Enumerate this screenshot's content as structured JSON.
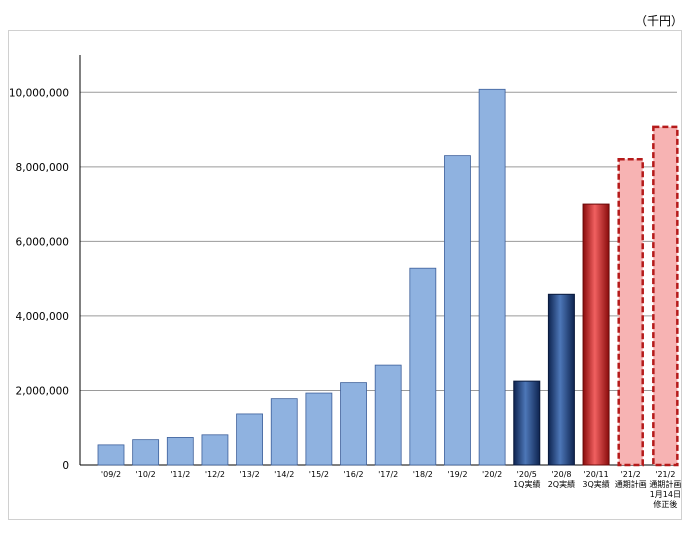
{
  "chart_data": {
    "type": "bar",
    "unit_label": "（千円）",
    "ylim": [
      0,
      11000000
    ],
    "yticks": [
      "0",
      "2,000,000",
      "4,000,000",
      "6,000,000",
      "8,000,000",
      "10,000,000"
    ],
    "grid": true,
    "categories": [
      [
        "'09/2"
      ],
      [
        "'10/2"
      ],
      [
        "'11/2"
      ],
      [
        "'12/2"
      ],
      [
        "'13/2"
      ],
      [
        "'14/2"
      ],
      [
        "'15/2"
      ],
      [
        "'16/2"
      ],
      [
        "'17/2"
      ],
      [
        "'18/2"
      ],
      [
        "'19/2"
      ],
      [
        "'20/2"
      ],
      [
        "'20/5",
        "1Q実績"
      ],
      [
        "'20/8",
        "2Q実績"
      ],
      [
        "'20/11",
        "3Q実績"
      ],
      [
        "'21/2",
        "通期計画"
      ],
      [
        "'21/2",
        "通期計画",
        "1月14日",
        "修正後"
      ]
    ],
    "values": [
      540000,
      680000,
      740000,
      810000,
      1370000,
      1780000,
      1930000,
      2210000,
      2680000,
      5280000,
      8300000,
      10080000,
      2250000,
      4580000,
      7000000,
      8230000,
      9100000
    ],
    "styles": [
      "historical",
      "historical",
      "historical",
      "historical",
      "historical",
      "historical",
      "historical",
      "historical",
      "historical",
      "historical",
      "historical",
      "historical",
      "quarterly",
      "quarterly",
      "quarterly_current",
      "plan",
      "plan"
    ],
    "colors": {
      "historical": "#8fb2e0",
      "quarterly": "#1f3f7a",
      "quarterly_current": "#c41818",
      "plan_fill": "#f7b3b3",
      "plan_border": "#b51a1a"
    }
  }
}
